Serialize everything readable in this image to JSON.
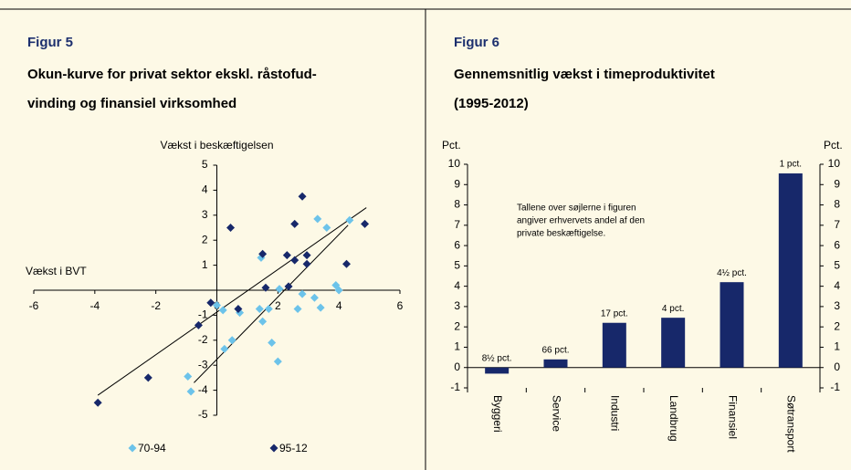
{
  "chart_data": [
    {
      "type": "scatter",
      "figure": "Figur 5",
      "title": [
        "Okun-kurve for privat sektor ekskl. råstofud-",
        "vinding og finansiel virksomhed"
      ],
      "y_label": "Vækst i beskæftigelsen",
      "x_label": "Vækst i BVT",
      "xlim": [
        -6,
        6
      ],
      "xticks": [
        -6,
        -4,
        -2,
        0,
        2,
        4,
        6
      ],
      "ylim": [
        -5,
        5
      ],
      "yticks": [
        -5,
        -4,
        -3,
        -2,
        -1,
        0,
        1,
        2,
        3,
        4,
        5
      ],
      "series": [
        {
          "name": "70-94",
          "color": "#6cc3ea",
          "x": [
            -0.95,
            -0.85,
            0.2,
            0.0,
            0.25,
            0.5,
            0.75,
            1.4,
            1.45,
            1.5,
            1.7,
            1.8,
            2.0,
            2.05,
            2.65,
            2.8,
            3.2,
            3.3,
            3.4,
            3.6,
            3.9,
            4.0,
            4.35
          ],
          "values": [
            -3.45,
            -4.05,
            -0.8,
            -0.6,
            -2.35,
            -2.0,
            -0.9,
            -0.75,
            1.3,
            -1.25,
            -0.75,
            -2.1,
            -2.85,
            0.05,
            -0.75,
            -0.15,
            -0.3,
            2.85,
            -0.7,
            2.5,
            0.2,
            0.0,
            2.8
          ]
        },
        {
          "name": "95-12",
          "color": "#17286a",
          "x": [
            -3.9,
            -2.25,
            -0.6,
            -0.2,
            0.45,
            0.7,
            1.5,
            1.6,
            2.3,
            2.35,
            2.55,
            2.55,
            2.8,
            2.95,
            2.95,
            4.25,
            4.85
          ],
          "values": [
            -4.5,
            -3.5,
            -1.4,
            -0.5,
            2.5,
            -0.75,
            1.45,
            0.1,
            1.4,
            0.15,
            2.65,
            1.2,
            3.75,
            1.4,
            1.05,
            1.05,
            2.65
          ]
        }
      ],
      "trend_lines": [
        {
          "x": [
            -3.9,
            4.9
          ],
          "values": [
            -4.2,
            3.3
          ]
        },
        {
          "x": [
            -0.75,
            4.3
          ],
          "values": [
            -3.7,
            2.6
          ]
        }
      ]
    },
    {
      "type": "bar",
      "figure": "Figur 6",
      "title": [
        "Gennemsnitlig vækst i timeproduktivitet",
        "(1995-2012)"
      ],
      "y_label": "Pct.",
      "y2_label": "Pct.",
      "categories": [
        "Byggeri",
        "Service",
        "Industri",
        "Landbrug",
        "Finansiel",
        "Søtransport"
      ],
      "values": [
        -0.3,
        0.4,
        2.2,
        2.45,
        4.2,
        9.55
      ],
      "color": "#17286a",
      "bar_annotations": [
        "8½ pct.",
        "66 pct.",
        "17 pct.",
        "4 pct.",
        "4½ pct.",
        "1 pct."
      ],
      "note": [
        "Tallene over søjlerne i figuren",
        "angiver erhvervets andel af den",
        "private beskæftigelse."
      ],
      "ylim": [
        -1,
        10
      ],
      "yticks": [
        -1,
        0,
        1,
        2,
        3,
        4,
        5,
        6,
        7,
        8,
        9,
        10
      ],
      "y2lim": [
        -1,
        10
      ],
      "y2ticks": [
        -1,
        0,
        1,
        2,
        3,
        4,
        5,
        6,
        7,
        8,
        9,
        10
      ]
    }
  ]
}
